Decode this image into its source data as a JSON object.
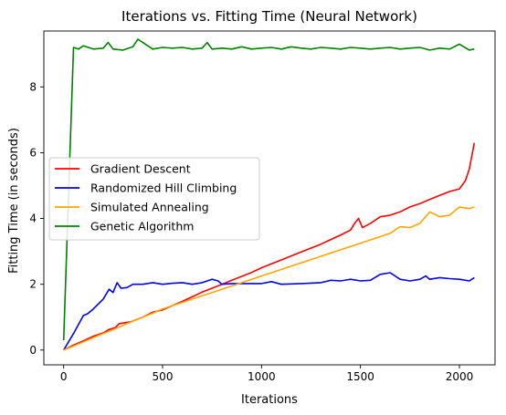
{
  "chart_data": {
    "type": "line",
    "title": "Iterations vs. Fitting Time (Neural Network)",
    "xlabel": "Iterations",
    "ylabel": "Fitting Time (in seconds)",
    "xlim": [
      -100,
      2180
    ],
    "ylim": [
      -0.45,
      9.7
    ],
    "xticks": [
      0,
      500,
      1000,
      1500,
      2000
    ],
    "yticks": [
      0,
      2,
      4,
      6,
      8
    ],
    "grid": false,
    "legend_position": "center-left",
    "series": [
      {
        "name": "Gradient Descent",
        "color": "#ff0000",
        "x": [
          0,
          50,
          100,
          150,
          200,
          230,
          260,
          280,
          300,
          340,
          400,
          450,
          500,
          550,
          600,
          650,
          700,
          750,
          800,
          850,
          900,
          950,
          1000,
          1050,
          1100,
          1150,
          1200,
          1250,
          1300,
          1350,
          1400,
          1450,
          1470,
          1490,
          1510,
          1550,
          1600,
          1650,
          1700,
          1750,
          1800,
          1850,
          1900,
          1950,
          2000,
          2030,
          2050,
          2075
        ],
        "values": [
          0.0,
          0.15,
          0.28,
          0.42,
          0.52,
          0.63,
          0.68,
          0.8,
          0.82,
          0.86,
          1.0,
          1.15,
          1.22,
          1.35,
          1.48,
          1.62,
          1.76,
          1.88,
          2.0,
          2.12,
          2.24,
          2.36,
          2.5,
          2.62,
          2.74,
          2.86,
          2.98,
          3.1,
          3.22,
          3.36,
          3.5,
          3.65,
          3.85,
          4.0,
          3.72,
          3.85,
          4.05,
          4.1,
          4.2,
          4.35,
          4.45,
          4.58,
          4.7,
          4.82,
          4.9,
          5.15,
          5.5,
          6.3
        ]
      },
      {
        "name": "Randomized Hill Climbing",
        "color": "#0000ff",
        "x": [
          0,
          50,
          100,
          120,
          150,
          200,
          230,
          250,
          270,
          290,
          320,
          350,
          400,
          450,
          500,
          550,
          600,
          650,
          700,
          750,
          780,
          800,
          850,
          900,
          1000,
          1050,
          1100,
          1200,
          1300,
          1350,
          1400,
          1450,
          1500,
          1550,
          1600,
          1650,
          1700,
          1750,
          1800,
          1830,
          1850,
          1900,
          1950,
          2000,
          2050,
          2075
        ],
        "values": [
          0.0,
          0.5,
          1.05,
          1.1,
          1.25,
          1.55,
          1.85,
          1.75,
          2.05,
          1.88,
          1.9,
          2.0,
          2.0,
          2.05,
          2.0,
          2.03,
          2.05,
          2.0,
          2.05,
          2.15,
          2.1,
          2.0,
          2.02,
          2.02,
          2.02,
          2.08,
          2.0,
          2.02,
          2.05,
          2.12,
          2.1,
          2.15,
          2.1,
          2.12,
          2.3,
          2.35,
          2.15,
          2.1,
          2.15,
          2.25,
          2.15,
          2.2,
          2.17,
          2.15,
          2.1,
          2.2
        ]
      },
      {
        "name": "Simulated Annealing",
        "color": "#ffa500",
        "x": [
          0,
          50,
          100,
          150,
          200,
          250,
          300,
          350,
          400,
          450,
          500,
          550,
          600,
          650,
          700,
          750,
          800,
          850,
          900,
          950,
          1000,
          1050,
          1100,
          1150,
          1200,
          1250,
          1300,
          1350,
          1400,
          1450,
          1500,
          1550,
          1600,
          1650,
          1700,
          1750,
          1800,
          1850,
          1900,
          1950,
          2000,
          2050,
          2075
        ],
        "values": [
          0.0,
          0.12,
          0.25,
          0.38,
          0.5,
          0.62,
          0.75,
          0.88,
          1.0,
          1.12,
          1.25,
          1.35,
          1.45,
          1.55,
          1.65,
          1.75,
          1.85,
          1.95,
          2.05,
          2.15,
          2.25,
          2.35,
          2.45,
          2.55,
          2.65,
          2.75,
          2.85,
          2.95,
          3.05,
          3.15,
          3.25,
          3.35,
          3.45,
          3.55,
          3.75,
          3.72,
          3.85,
          4.2,
          4.05,
          4.1,
          4.35,
          4.3,
          4.35
        ]
      },
      {
        "name": "Genetic Algorithm",
        "color": "#008000",
        "x": [
          0,
          50,
          75,
          100,
          150,
          200,
          225,
          250,
          300,
          350,
          375,
          400,
          450,
          500,
          550,
          600,
          650,
          700,
          725,
          750,
          800,
          850,
          900,
          950,
          1000,
          1050,
          1100,
          1150,
          1200,
          1250,
          1300,
          1350,
          1400,
          1450,
          1500,
          1550,
          1600,
          1650,
          1700,
          1750,
          1800,
          1850,
          1900,
          1950,
          2000,
          2050,
          2075
        ],
        "values": [
          0.3,
          9.2,
          9.15,
          9.25,
          9.15,
          9.18,
          9.35,
          9.15,
          9.12,
          9.22,
          9.45,
          9.35,
          9.15,
          9.2,
          9.18,
          9.2,
          9.15,
          9.18,
          9.35,
          9.15,
          9.18,
          9.15,
          9.22,
          9.15,
          9.18,
          9.2,
          9.15,
          9.22,
          9.18,
          9.15,
          9.2,
          9.18,
          9.15,
          9.2,
          9.18,
          9.15,
          9.18,
          9.2,
          9.15,
          9.18,
          9.2,
          9.12,
          9.18,
          9.15,
          9.3,
          9.12,
          9.15
        ]
      }
    ]
  }
}
